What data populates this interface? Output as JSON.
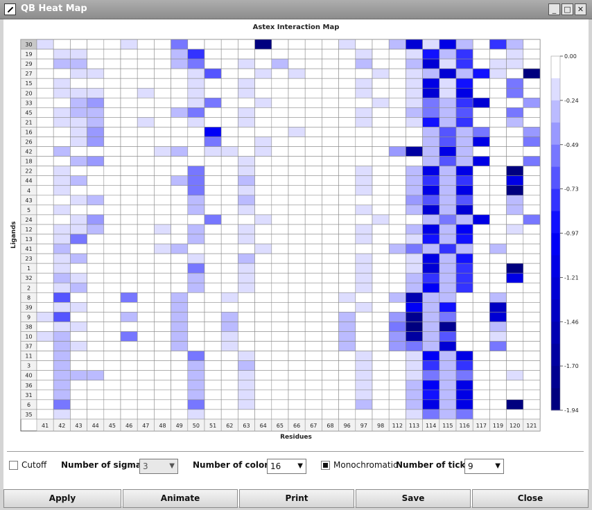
{
  "window": {
    "title": "QB Heat Map",
    "minimize_glyph": "_",
    "maximize_glyph": "□",
    "close_glyph": "✕"
  },
  "chart_data": {
    "type": "heatmap",
    "title": "Astex Interaction Map",
    "xlabel": "Residues",
    "ylabel": "Ligands",
    "x": [
      "41",
      "42",
      "43",
      "44",
      "45",
      "46",
      "47",
      "48",
      "49",
      "50",
      "51",
      "62",
      "63",
      "64",
      "65",
      "66",
      "67",
      "68",
      "96",
      "97",
      "98",
      "112",
      "113",
      "114",
      "115",
      "116",
      "117",
      "119",
      "120",
      "121"
    ],
    "y": [
      "30",
      "19",
      "29",
      "27",
      "15",
      "20",
      "33",
      "45",
      "21",
      "16",
      "26",
      "42",
      "18",
      "22",
      "44",
      "4",
      "43",
      "5",
      "24",
      "12",
      "13",
      "41",
      "23",
      "1",
      "32",
      "2",
      "8",
      "39",
      "9",
      "38",
      "10",
      "37",
      "11",
      "3",
      "40",
      "36",
      "31",
      "6",
      "35"
    ],
    "color_range": [
      -1.94,
      0.0
    ],
    "colorbar_ticks": [
      "0.00",
      "-0.24",
      "-0.49",
      "-0.73",
      "-0.97",
      "-1.21",
      "-1.46",
      "-1.70",
      "-1.94"
    ],
    "colormap": "white-to-navy monochromatic blue",
    "colors": {
      "low": "#00007f",
      "high": "#ffffff"
    },
    "values": [
      [
        -0.18,
        -0.12,
        0,
        0,
        0,
        -0.18,
        0,
        0,
        -0.55,
        0,
        0,
        0,
        0,
        -1.94,
        0,
        0,
        0,
        0,
        -0.18,
        0,
        0,
        -0.3,
        -1.3,
        -0.2,
        -1.2,
        -0.3,
        0,
        -0.8,
        -0.25,
        0
      ],
      [
        0,
        -0.18,
        -0.18,
        0,
        0,
        0,
        0,
        0,
        -0.25,
        -0.75,
        0,
        0,
        0,
        0,
        0,
        0,
        0,
        0,
        0,
        -0.18,
        0,
        0,
        -0.18,
        -0.9,
        -0.3,
        -0.8,
        0,
        0,
        -0.18,
        0
      ],
      [
        0,
        -0.25,
        -0.25,
        0,
        0,
        0,
        0,
        0,
        -0.25,
        -0.55,
        0,
        0,
        -0.18,
        0,
        -0.3,
        0,
        0,
        0,
        0,
        -0.25,
        0,
        0,
        -0.25,
        -1.3,
        -0.18,
        -0.8,
        0,
        -0.18,
        -0.18,
        0
      ],
      [
        0,
        0,
        -0.18,
        -0.18,
        -0.12,
        0,
        0,
        0,
        0,
        -0.18,
        -0.65,
        0,
        0,
        -0.18,
        0,
        -0.18,
        0,
        0,
        0,
        0,
        -0.18,
        0,
        -0.18,
        -0.3,
        -1.3,
        -0.3,
        -0.9,
        -0.18,
        0,
        -1.94
      ],
      [
        0,
        -0.18,
        0,
        0,
        0,
        0,
        0,
        0,
        0,
        -0.18,
        0,
        0,
        -0.18,
        0,
        0,
        0,
        0,
        0,
        0,
        -0.18,
        0,
        0,
        -0.18,
        -1.1,
        -0.18,
        -0.9,
        0,
        0,
        -0.5,
        0
      ],
      [
        0,
        -0.18,
        -0.18,
        -0.18,
        0,
        0,
        -0.18,
        0,
        0,
        -0.18,
        0,
        0,
        -0.18,
        0,
        0,
        0,
        0,
        0,
        0,
        -0.18,
        0,
        0,
        -0.18,
        -1.3,
        -0.18,
        -1.2,
        0,
        0,
        -0.5,
        0
      ],
      [
        0,
        0,
        -0.35,
        -0.45,
        0,
        0,
        0,
        0,
        0,
        -0.18,
        -0.6,
        0,
        0,
        -0.18,
        0,
        0,
        0,
        0,
        0,
        0,
        -0.18,
        0,
        -0.18,
        -0.55,
        -0.3,
        -0.8,
        -1.3,
        0,
        0,
        -0.45
      ],
      [
        0,
        -0.18,
        -0.3,
        -0.25,
        0,
        0,
        0,
        0,
        -0.3,
        -0.6,
        0,
        0,
        -0.18,
        0,
        0,
        0,
        0,
        0,
        0,
        -0.18,
        0,
        0,
        -0.3,
        -0.6,
        -0.3,
        -0.7,
        0,
        0,
        -0.6,
        0
      ],
      [
        0,
        -0.18,
        -0.18,
        -0.25,
        0,
        0,
        -0.18,
        0,
        0,
        -0.18,
        0,
        0,
        -0.18,
        0,
        0,
        0,
        0,
        0,
        0,
        -0.18,
        0,
        0,
        -0.18,
        -0.9,
        -0.3,
        -0.8,
        0,
        0,
        -0.3,
        0
      ],
      [
        0,
        0,
        -0.18,
        -0.45,
        0,
        0,
        0,
        0,
        0,
        0,
        -1.0,
        0,
        0,
        0,
        0,
        -0.18,
        0,
        0,
        0,
        0,
        0,
        0,
        0,
        -0.3,
        -0.7,
        -0.3,
        -0.6,
        0,
        0,
        -0.4
      ],
      [
        0,
        0,
        -0.18,
        -0.45,
        0,
        0,
        0,
        0,
        0,
        0,
        -0.6,
        0,
        0,
        -0.18,
        0,
        0,
        0,
        0,
        0,
        0,
        0,
        0,
        0,
        -0.3,
        -0.7,
        -0.3,
        -1.1,
        0,
        0,
        -0.6
      ],
      [
        0,
        -0.35,
        0,
        0,
        0,
        0,
        0,
        -0.18,
        -0.25,
        0,
        -0.18,
        -0.18,
        0,
        -0.18,
        0,
        0,
        0,
        0,
        0,
        0,
        0,
        -0.45,
        -1.6,
        -0.3,
        -1.2,
        -0.3,
        0,
        0,
        0,
        0
      ],
      [
        0,
        0,
        -0.25,
        -0.45,
        0,
        0,
        0,
        0,
        0,
        0,
        0,
        0,
        -0.18,
        0,
        0,
        0,
        0,
        0,
        0,
        0,
        0,
        0,
        0,
        -0.3,
        -0.7,
        -0.3,
        -1.1,
        0,
        0,
        -0.6
      ],
      [
        0,
        -0.18,
        0,
        0,
        0,
        0,
        0,
        0,
        0,
        -0.55,
        0,
        0,
        -0.18,
        0,
        0,
        0,
        0,
        0,
        0,
        -0.18,
        0,
        0,
        -0.3,
        -1.2,
        -0.3,
        -1.1,
        0,
        0,
        -1.9,
        0
      ],
      [
        0,
        -0.18,
        -0.25,
        0,
        0,
        0,
        0,
        0,
        -0.3,
        -0.6,
        0,
        0,
        -0.25,
        0,
        0,
        0,
        0,
        0,
        0,
        -0.18,
        0,
        0,
        -0.3,
        -0.8,
        -0.3,
        -0.8,
        0,
        0,
        -1.1,
        0
      ],
      [
        0,
        -0.18,
        0,
        0,
        0,
        0,
        0,
        0,
        0,
        -0.6,
        0,
        0,
        -0.18,
        0,
        0,
        0,
        0,
        0,
        0,
        -0.18,
        0,
        0,
        -0.3,
        -1.2,
        -0.3,
        -1.1,
        0,
        0,
        -1.9,
        0
      ],
      [
        0,
        0,
        -0.18,
        -0.3,
        0,
        0,
        0,
        0,
        0,
        -0.25,
        0,
        0,
        -0.25,
        0,
        0,
        0,
        0,
        0,
        0,
        0,
        0,
        0,
        -0.45,
        -0.7,
        -0.3,
        -0.7,
        0,
        0,
        -0.3,
        0
      ],
      [
        0,
        -0.18,
        0,
        0,
        0,
        0,
        0,
        0,
        0,
        -0.3,
        0,
        0,
        -0.18,
        0,
        0,
        0,
        0,
        0,
        0,
        -0.18,
        0,
        0,
        -0.3,
        -1.3,
        -0.3,
        -1.3,
        0,
        0,
        -0.25,
        0
      ],
      [
        0,
        0,
        -0.18,
        -0.45,
        0,
        0,
        0,
        0,
        0,
        0,
        -0.55,
        0,
        0,
        -0.18,
        0,
        0,
        0,
        0,
        0,
        0,
        -0.18,
        0,
        0,
        -0.3,
        -0.6,
        -0.3,
        -1.1,
        0,
        0,
        -0.5
      ],
      [
        0,
        -0.18,
        -0.18,
        -0.25,
        0,
        0,
        0,
        -0.18,
        0,
        -0.3,
        0,
        0,
        -0.18,
        0,
        0,
        0,
        0,
        0,
        0,
        -0.18,
        0,
        0,
        -0.25,
        -1.1,
        -0.3,
        -1.0,
        0,
        0,
        -0.18,
        0
      ],
      [
        0,
        -0.18,
        -0.6,
        0,
        0,
        0,
        0,
        0,
        0,
        -0.3,
        0,
        0,
        -0.18,
        0,
        0,
        0,
        0,
        0,
        0,
        -0.18,
        0,
        0,
        -0.18,
        -0.9,
        -0.3,
        -0.9,
        0,
        0,
        0,
        0
      ],
      [
        0,
        -0.25,
        0,
        0,
        0,
        0,
        0,
        -0.18,
        -0.35,
        0,
        0,
        0,
        0,
        -0.18,
        0,
        0,
        0,
        0,
        0,
        0,
        0,
        -0.35,
        -0.5,
        -0.3,
        -0.8,
        -0.3,
        0,
        -0.3,
        0,
        0
      ],
      [
        0,
        -0.18,
        -0.25,
        0,
        0,
        0,
        0,
        0,
        0,
        -0.18,
        0,
        0,
        -0.25,
        0,
        0,
        0,
        0,
        0,
        0,
        -0.18,
        0,
        0,
        -0.18,
        -1.1,
        -0.3,
        -0.9,
        0,
        0,
        0,
        0
      ],
      [
        0,
        -0.18,
        0,
        0,
        0,
        0,
        0,
        0,
        0,
        -0.55,
        0,
        0,
        -0.18,
        0,
        0,
        0,
        0,
        0,
        0,
        -0.18,
        0,
        0,
        -0.18,
        -1.3,
        -0.3,
        -0.8,
        0,
        0,
        -1.9,
        0
      ],
      [
        0,
        -0.25,
        -0.18,
        0,
        0,
        0,
        0,
        0,
        0,
        -0.25,
        0,
        0,
        -0.18,
        0,
        0,
        0,
        0,
        0,
        0,
        -0.18,
        0,
        0,
        -0.25,
        -0.8,
        -0.3,
        -0.8,
        0,
        0,
        -1.1,
        0
      ],
      [
        0,
        -0.18,
        -0.25,
        0,
        0,
        0,
        0,
        0,
        0,
        -0.3,
        0,
        0,
        -0.18,
        0,
        0,
        0,
        0,
        0,
        0,
        -0.18,
        0,
        0,
        -0.25,
        -1.0,
        -0.3,
        -0.8,
        0,
        0,
        0,
        0
      ],
      [
        0,
        -0.65,
        0,
        0,
        0,
        -0.6,
        0,
        0,
        -0.35,
        0,
        0,
        -0.18,
        0,
        0,
        0,
        0,
        0,
        0,
        -0.18,
        0,
        0,
        -0.3,
        -1.5,
        -0.3,
        -0.3,
        0,
        0,
        -0.35,
        0,
        0
      ],
      [
        0,
        -0.18,
        -0.18,
        0,
        0,
        0,
        0,
        0,
        -0.3,
        0,
        0,
        0,
        0,
        0,
        0,
        0,
        0,
        0,
        0,
        -0.18,
        0,
        0,
        -1.0,
        -0.3,
        -0.9,
        0,
        0,
        -1.4,
        0,
        0
      ],
      [
        -0.18,
        -0.65,
        0,
        0,
        0,
        -0.25,
        0,
        0,
        -0.3,
        0,
        0,
        -0.25,
        0,
        0,
        0,
        0,
        0,
        0,
        -0.25,
        0,
        0,
        -0.45,
        -1.7,
        -0.3,
        -0.5,
        0,
        0,
        -1.3,
        0,
        0
      ],
      [
        0,
        -0.18,
        -0.18,
        0,
        0,
        0,
        0,
        0,
        -0.3,
        0,
        0,
        -0.25,
        0,
        0,
        0,
        0,
        0,
        0,
        -0.25,
        0,
        0,
        -0.55,
        -1.9,
        -0.3,
        -1.8,
        0,
        0,
        -0.3,
        0,
        0
      ],
      [
        -0.18,
        -0.25,
        0,
        0,
        0,
        -0.6,
        0,
        0,
        -0.3,
        0,
        0,
        -0.18,
        0,
        0,
        0,
        0,
        0,
        0,
        -0.25,
        0,
        0,
        -0.45,
        -1.6,
        -0.3,
        -0.7,
        0,
        0,
        -0.18,
        0,
        0
      ],
      [
        0,
        -0.3,
        -0.18,
        0,
        0,
        0,
        0,
        0,
        -0.25,
        0,
        0,
        -0.18,
        0,
        0,
        0,
        0,
        0,
        0,
        -0.25,
        0,
        0,
        -0.45,
        -0.55,
        -0.3,
        -1.3,
        0,
        0,
        -0.6,
        0,
        0
      ],
      [
        0,
        -0.3,
        0,
        0,
        0,
        0,
        0,
        0,
        0,
        -0.5,
        0,
        0,
        -0.18,
        0,
        0,
        0,
        0,
        0,
        0,
        -0.18,
        0,
        0,
        -0.18,
        -1.0,
        -0.25,
        -1.1,
        0,
        0,
        0,
        0
      ],
      [
        0,
        -0.3,
        0,
        0,
        0,
        0,
        0,
        0,
        0,
        -0.3,
        0,
        0,
        -0.25,
        0,
        0,
        0,
        0,
        0,
        0,
        -0.18,
        0,
        0,
        -0.18,
        -0.8,
        -0.25,
        -0.8,
        0,
        0,
        0,
        0
      ],
      [
        0,
        -0.35,
        -0.3,
        -0.25,
        0,
        0,
        0,
        0,
        0,
        -0.25,
        0,
        0,
        -0.18,
        0,
        0,
        0,
        0,
        0,
        0,
        -0.18,
        0,
        0,
        -0.18,
        -0.55,
        -0.3,
        -0.55,
        0,
        0,
        -0.18,
        0
      ],
      [
        0,
        -0.3,
        0,
        0,
        0,
        0,
        0,
        0,
        0,
        -0.25,
        0,
        0,
        -0.18,
        0,
        0,
        0,
        0,
        0,
        0,
        -0.18,
        0,
        0,
        -0.25,
        -1.0,
        -0.3,
        -1.2,
        0,
        0,
        0,
        0
      ],
      [
        0,
        -0.25,
        0,
        0,
        0,
        0,
        0,
        0,
        0,
        -0.25,
        0,
        0,
        -0.18,
        0,
        0,
        0,
        0,
        0,
        0,
        -0.18,
        0,
        0,
        -0.25,
        -0.9,
        -0.3,
        -1.1,
        0,
        0,
        0,
        0
      ],
      [
        0,
        -0.55,
        0,
        0,
        0,
        0,
        0,
        0,
        0,
        -0.5,
        0,
        0,
        -0.18,
        0,
        0,
        0,
        0,
        0,
        0,
        -0.35,
        0,
        0,
        -0.25,
        -1.1,
        -0.3,
        -1.1,
        0,
        0,
        -1.9,
        0
      ],
      [
        0,
        -0.18,
        0,
        0,
        0,
        0,
        0,
        0,
        0,
        -0.18,
        0,
        0,
        0,
        0,
        0,
        0,
        0,
        0,
        0,
        0,
        0,
        0,
        -0.18,
        -0.6,
        -0.25,
        -0.6,
        0,
        0,
        0,
        0
      ]
    ]
  },
  "controls": {
    "cutoff_label": "Cutoff",
    "sigmas_label": "Number of sigmas:",
    "sigmas_value": "3",
    "colors_label": "Number of colors:",
    "colors_value": "16",
    "mono_label": "Monochromatic",
    "ticks_label": "Number of ticks:",
    "ticks_value": "9",
    "arrow_glyph": "▼"
  },
  "buttons": {
    "apply": "Apply",
    "animate": "Animate",
    "print": "Print",
    "save": "Save",
    "close": "Close"
  }
}
